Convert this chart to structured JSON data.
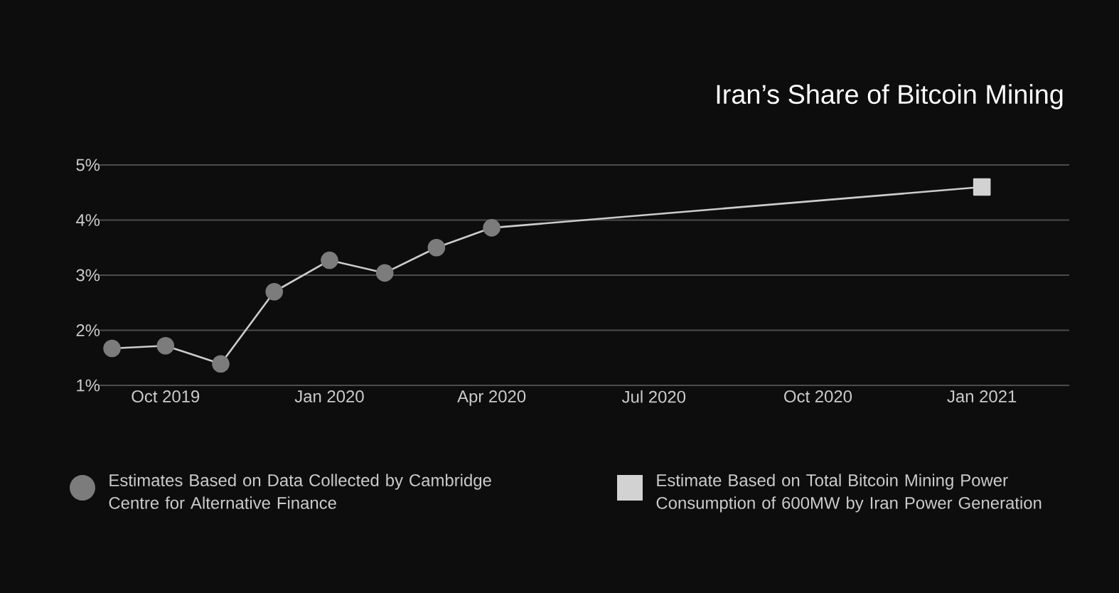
{
  "chart_data": {
    "type": "line",
    "title": "Iran’s Share of Bitcoin Mining",
    "series": [
      {
        "name": "Estimates Based on Data Collected by Cambridge Centre for Alternative Finance",
        "color": "#7c7c7c",
        "marker": "circle",
        "x": [
          "2019-09",
          "2019-10",
          "2019-11",
          "2019-12",
          "2020-01",
          "2020-02",
          "2020-03",
          "2020-04"
        ],
        "values": [
          1.67,
          1.72,
          1.39,
          2.7,
          3.27,
          3.04,
          3.5,
          3.86
        ]
      },
      {
        "name": "Estimate Based on Total Bitcoin Mining Power Consumption of 600MW by Iran Power Generation",
        "color": "#d2d2d2",
        "marker": "square",
        "x": [
          "2020-04",
          "2021-01"
        ],
        "values": [
          3.86,
          4.6
        ]
      }
    ],
    "xlim": [
      "2019-08-25",
      "2021-02-19"
    ],
    "xticks": [
      {
        "value": "2019-10",
        "label": "Oct 2019"
      },
      {
        "value": "2020-01",
        "label": "Jan 2020"
      },
      {
        "value": "2020-04",
        "label": "Apr 2020"
      },
      {
        "value": "2020-07",
        "label": "Jul 2020"
      },
      {
        "value": "2020-10",
        "label": "Oct 2020"
      },
      {
        "value": "2021-01",
        "label": "Jan 2021"
      }
    ],
    "ylim": [
      1,
      5
    ],
    "yticks": [
      {
        "value": 1,
        "label": "1%"
      },
      {
        "value": 2,
        "label": "2%"
      },
      {
        "value": 3,
        "label": "3%"
      },
      {
        "value": 4,
        "label": "4%"
      },
      {
        "value": 5,
        "label": "5%"
      }
    ],
    "grid": "y",
    "legend": "bottom"
  }
}
